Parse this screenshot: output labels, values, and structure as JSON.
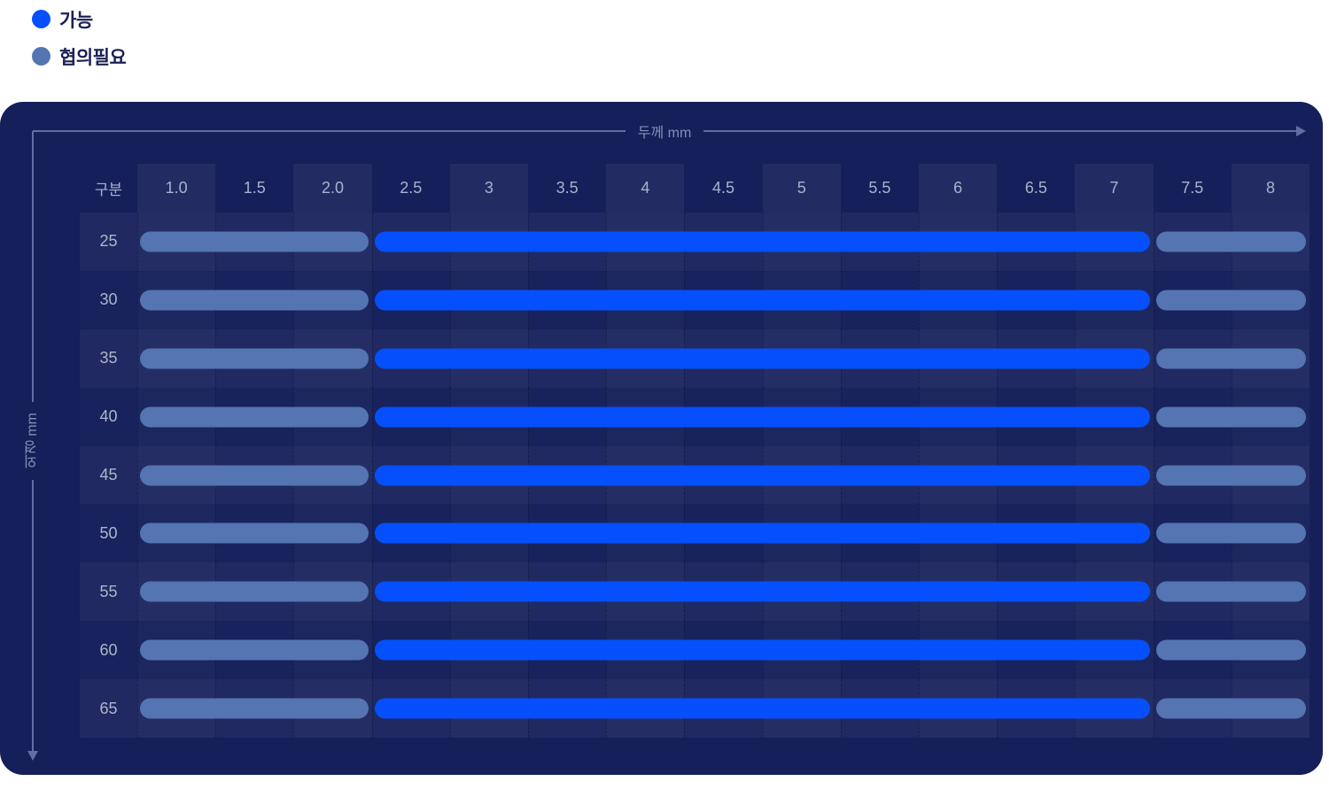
{
  "legend": {
    "items": [
      {
        "key": "available",
        "label": "가능",
        "color": "#0550fc"
      },
      {
        "key": "consult_needed",
        "label": "협의필요",
        "color": "#5474b2"
      }
    ]
  },
  "colors": {
    "card_background": "#151f5a",
    "available": "#0550fc",
    "consult_needed": "#5474b2",
    "axis_line": "#5f6fa2",
    "axis_text": "#8590b2",
    "header_text": "#a9b2ca",
    "row_label_text": "#aeb6cc",
    "legend_text": "#1b2156"
  },
  "chart_data": {
    "type": "table",
    "title": "",
    "x_axis_label": "두께 mm",
    "y_axis_label": "외경 mm",
    "corner_label": "구분",
    "legend_position": "top-left",
    "columns": [
      "1.0",
      "1.5",
      "2.0",
      "2.5",
      "3",
      "3.5",
      "4",
      "4.5",
      "5",
      "5.5",
      "6",
      "6.5",
      "7",
      "7.5",
      "8"
    ],
    "row_labels": [
      "25",
      "30",
      "35",
      "40",
      "45",
      "50",
      "55",
      "60",
      "65"
    ],
    "rows": [
      {
        "outer_diameter_mm": "25",
        "segments": [
          {
            "status": "협의필요",
            "from_mm": "1.0",
            "to_mm": "2.0"
          },
          {
            "status": "가능",
            "from_mm": "2.5",
            "to_mm": "7"
          },
          {
            "status": "협의필요",
            "from_mm": "7.5",
            "to_mm": "8"
          }
        ]
      },
      {
        "outer_diameter_mm": "30",
        "segments": [
          {
            "status": "협의필요",
            "from_mm": "1.0",
            "to_mm": "2.0"
          },
          {
            "status": "가능",
            "from_mm": "2.5",
            "to_mm": "7"
          },
          {
            "status": "협의필요",
            "from_mm": "7.5",
            "to_mm": "8"
          }
        ]
      },
      {
        "outer_diameter_mm": "35",
        "segments": [
          {
            "status": "협의필요",
            "from_mm": "1.0",
            "to_mm": "2.0"
          },
          {
            "status": "가능",
            "from_mm": "2.5",
            "to_mm": "7"
          },
          {
            "status": "협의필요",
            "from_mm": "7.5",
            "to_mm": "8"
          }
        ]
      },
      {
        "outer_diameter_mm": "40",
        "segments": [
          {
            "status": "협의필요",
            "from_mm": "1.0",
            "to_mm": "2.0"
          },
          {
            "status": "가능",
            "from_mm": "2.5",
            "to_mm": "7"
          },
          {
            "status": "협의필요",
            "from_mm": "7.5",
            "to_mm": "8"
          }
        ]
      },
      {
        "outer_diameter_mm": "45",
        "segments": [
          {
            "status": "협의필요",
            "from_mm": "1.0",
            "to_mm": "2.0"
          },
          {
            "status": "가능",
            "from_mm": "2.5",
            "to_mm": "7"
          },
          {
            "status": "협의필요",
            "from_mm": "7.5",
            "to_mm": "8"
          }
        ]
      },
      {
        "outer_diameter_mm": "50",
        "segments": [
          {
            "status": "협의필요",
            "from_mm": "1.0",
            "to_mm": "2.0"
          },
          {
            "status": "가능",
            "from_mm": "2.5",
            "to_mm": "7"
          },
          {
            "status": "협의필요",
            "from_mm": "7.5",
            "to_mm": "8"
          }
        ]
      },
      {
        "outer_diameter_mm": "55",
        "segments": [
          {
            "status": "협의필요",
            "from_mm": "1.0",
            "to_mm": "2.0"
          },
          {
            "status": "가능",
            "from_mm": "2.5",
            "to_mm": "7"
          },
          {
            "status": "협의필요",
            "from_mm": "7.5",
            "to_mm": "8"
          }
        ]
      },
      {
        "outer_diameter_mm": "60",
        "segments": [
          {
            "status": "협의필요",
            "from_mm": "1.0",
            "to_mm": "2.0"
          },
          {
            "status": "가능",
            "from_mm": "2.5",
            "to_mm": "7"
          },
          {
            "status": "협의필요",
            "from_mm": "7.5",
            "to_mm": "8"
          }
        ]
      },
      {
        "outer_diameter_mm": "65",
        "segments": [
          {
            "status": "협의필요",
            "from_mm": "1.0",
            "to_mm": "2.0"
          },
          {
            "status": "가능",
            "from_mm": "2.5",
            "to_mm": "7"
          },
          {
            "status": "협의필요",
            "from_mm": "7.5",
            "to_mm": "8"
          }
        ]
      }
    ]
  }
}
